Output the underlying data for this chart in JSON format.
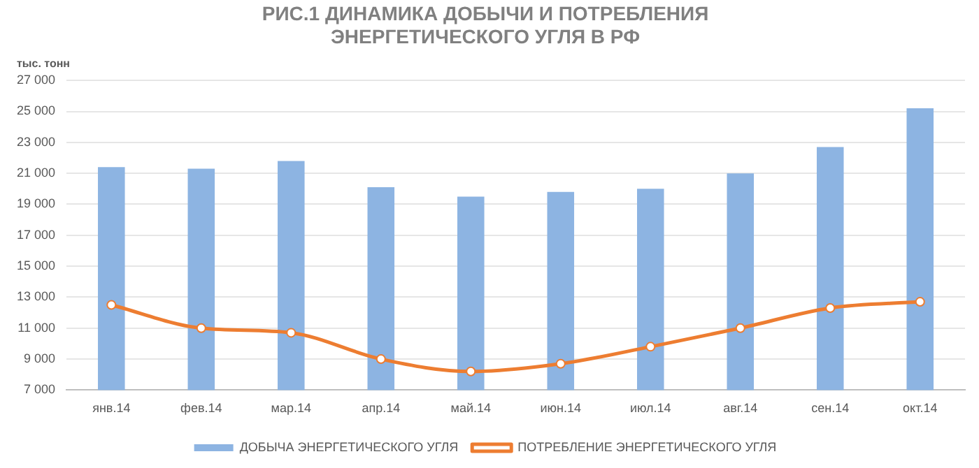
{
  "chart_data": {
    "type": "bar",
    "title": "РИС.1 ДИНАМИКА ДОБЫЧИ И ПОТРЕБЛЕНИЯ ЭНЕРГЕТИЧЕСКОГО УГЛЯ В РФ",
    "ylabel": "тыс. тонн",
    "categories": [
      "янв.14",
      "фев.14",
      "мар.14",
      "апр.14",
      "май.14",
      "июн.14",
      "июл.14",
      "авг.14",
      "сен.14",
      "окт.14"
    ],
    "series": [
      {
        "name": "ДОБЫЧА ЭНЕРГЕТИЧЕСКОГО УГЛЯ",
        "color": "#8db4e2",
        "values": [
          21400,
          21300,
          21800,
          20100,
          19500,
          19800,
          20000,
          21000,
          22700,
          25200
        ]
      },
      {
        "name": "ПОТРЕБЛЕНИЕ ЭНЕРГЕТИЧЕСКОГО УГЛЯ",
        "type": "line",
        "color": "#ed7d31",
        "marker": "circle",
        "values": [
          12500,
          11000,
          10700,
          9000,
          8200,
          8700,
          9800,
          11000,
          12300,
          12700
        ]
      }
    ],
    "ylim": [
      7000,
      27000
    ],
    "yticks": [
      {
        "value": 7000,
        "label": "7 000"
      },
      {
        "value": 9000,
        "label": "9 000"
      },
      {
        "value": 11000,
        "label": "11 000"
      },
      {
        "value": 13000,
        "label": "13 000"
      },
      {
        "value": 15000,
        "label": "15 000"
      },
      {
        "value": 17000,
        "label": "17 000"
      },
      {
        "value": 19000,
        "label": "19 000"
      },
      {
        "value": 21000,
        "label": "21 000"
      },
      {
        "value": 23000,
        "label": "23 000"
      },
      {
        "value": 25000,
        "label": "25 000"
      },
      {
        "value": 27000,
        "label": "27 000"
      }
    ],
    "grid": "y",
    "legend": "bottom"
  }
}
